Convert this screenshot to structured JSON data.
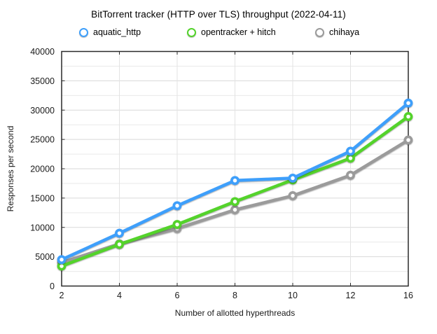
{
  "title": "BitTorrent tracker (HTTP over TLS) throughput (2022-04-11)",
  "legend": [
    {
      "label": "aquatic_http",
      "color": "#3E9FFB"
    },
    {
      "label": "opentracker + hitch",
      "color": "#54D32B"
    },
    {
      "label": "chihaya",
      "color": "#9B9B9B"
    }
  ],
  "colors": {
    "axis": "#2a2a2a",
    "grid_major": "#d9d9d9",
    "grid_minor": "#e9e9e9",
    "marker_fill": "#ffffff"
  },
  "chart_data": {
    "type": "line",
    "title": "BitTorrent tracker (HTTP over TLS) throughput (2022-04-11)",
    "x": [
      2,
      4,
      6,
      8,
      10,
      12,
      16
    ],
    "x_tick_labels": [
      "2",
      "4",
      "6",
      "8",
      "10",
      "12",
      "16"
    ],
    "xlabel": "Number of allotted hyperthreads",
    "ylabel": "Responses per second",
    "ylim": [
      0,
      40000
    ],
    "y_major_step": 5000,
    "y_minor_step": 2500,
    "y_tick_labels": [
      "0",
      "5000",
      "10000",
      "15000",
      "20000",
      "25000",
      "30000",
      "35000",
      "40000"
    ],
    "grid": true,
    "legend_position": "top",
    "series": [
      {
        "name": "aquatic_http",
        "color": "#3E9FFB",
        "values": [
          4500,
          9000,
          13700,
          18000,
          18400,
          23000,
          31200
        ]
      },
      {
        "name": "opentracker + hitch",
        "color": "#54D32B",
        "values": [
          3400,
          7100,
          10500,
          14400,
          18100,
          21800,
          28900
        ]
      },
      {
        "name": "chihaya",
        "color": "#9B9B9B",
        "values": [
          4000,
          7200,
          9800,
          13000,
          15400,
          18900,
          24900
        ]
      }
    ]
  }
}
